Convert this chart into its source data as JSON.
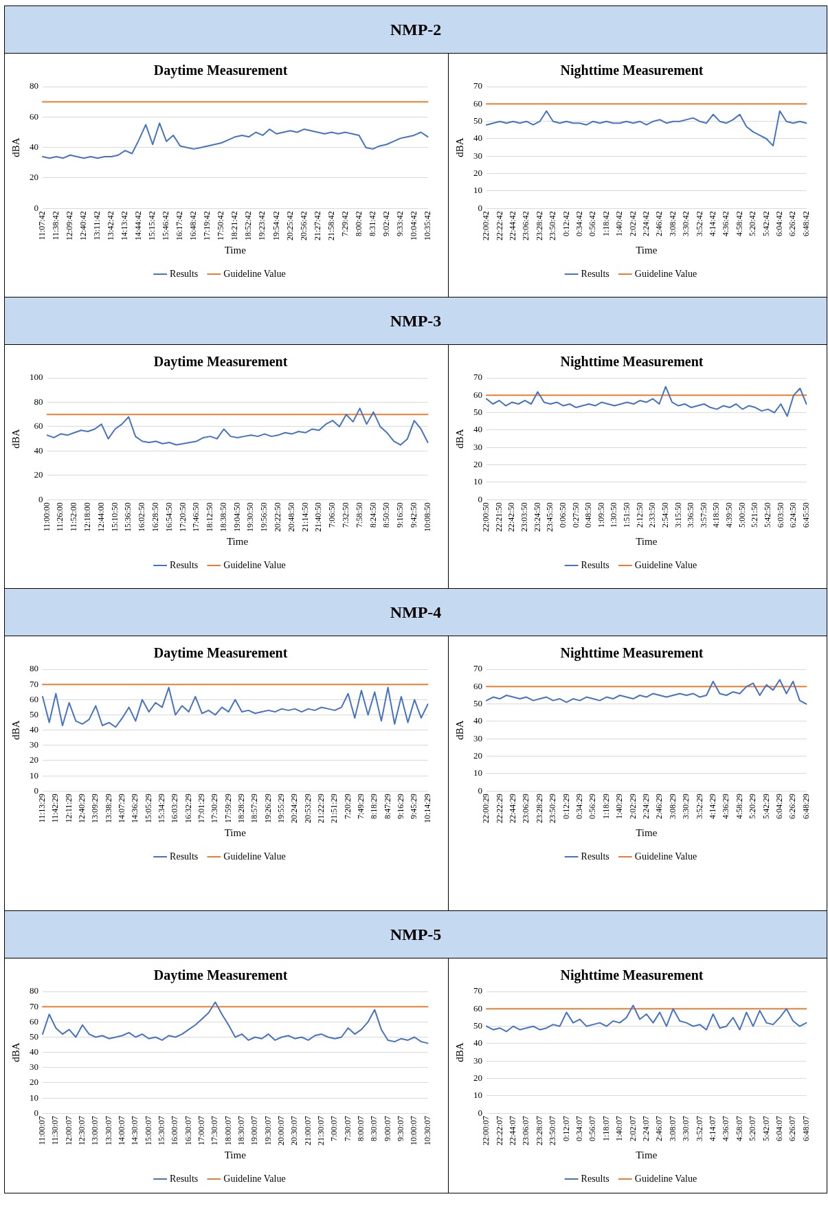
{
  "chart_data": [
    {
      "type": "line",
      "subtitle": "NMP-2",
      "title": "Daytime Measurement",
      "xlabel": "Time",
      "ylabel": "dBA",
      "grid": "y",
      "legend": "bottom",
      "marker": "none",
      "categories": [
        "11:07:42",
        null,
        "11:38:42",
        null,
        "12:09:42",
        null,
        "12:40:42",
        null,
        "13:11:42",
        null,
        "13:42:42",
        null,
        "14:13:42",
        null,
        "14:44:42",
        null,
        "15:15:42",
        null,
        "15:46:42",
        null,
        "16:17:42",
        null,
        "16:48:42",
        null,
        "17:19:42",
        null,
        "17:50:42",
        null,
        "18:21:42",
        null,
        "18:52:42",
        null,
        "19:23:42",
        null,
        "19:54:42",
        null,
        "20:25:42",
        null,
        "20:56:42",
        null,
        "21:27:42",
        null,
        "21:58:42",
        null,
        "7:29:42",
        null,
        "8:00:42",
        null,
        "8:31:42",
        null,
        "9:02:42",
        null,
        "9:33:42",
        null,
        "10:04:42",
        null,
        "10:35:42"
      ],
      "ylim": [
        0,
        80
      ],
      "yticks": [
        0,
        20,
        40,
        60,
        80
      ],
      "series": [
        {
          "name": "Results",
          "color": "#4472c4",
          "values": [
            34,
            33,
            34,
            33,
            35,
            34,
            33,
            34,
            33,
            34,
            34,
            35,
            38,
            36,
            45,
            55,
            42,
            56,
            44,
            48,
            41,
            40,
            39,
            40,
            41,
            42,
            43,
            45,
            47,
            48,
            47,
            50,
            48,
            52,
            49,
            50,
            51,
            50,
            52,
            51,
            50,
            49,
            50,
            49,
            50,
            49,
            48,
            40,
            39,
            41,
            42,
            44,
            46,
            47,
            48,
            50,
            47
          ]
        },
        {
          "name": "Guideline Value",
          "color": "#ed7d31",
          "values": [
            70,
            70,
            70,
            70,
            70,
            70,
            70,
            70,
            70,
            70,
            70,
            70,
            70,
            70,
            70,
            70,
            70,
            70,
            70,
            70,
            70,
            70,
            70,
            70,
            70,
            70,
            70,
            70,
            70,
            70,
            70,
            70,
            70,
            70,
            70,
            70,
            70,
            70,
            70,
            70,
            70,
            70,
            70,
            70,
            70,
            70,
            70,
            70,
            70,
            70,
            70,
            70,
            70,
            70,
            70,
            70,
            70
          ]
        }
      ]
    },
    {
      "type": "line",
      "title": "Nighttime Measurement",
      "xlabel": "Time",
      "ylabel": "dBA",
      "grid": "y",
      "legend": "bottom",
      "marker": "none",
      "categories": [
        "22:00:42",
        null,
        "22:22:42",
        null,
        "22:44:42",
        null,
        "23:06:42",
        null,
        "23:28:42",
        null,
        "23:50:42",
        null,
        "0:12:42",
        null,
        "0:34:42",
        null,
        "0:56:42",
        null,
        "1:18:42",
        null,
        "1:40:42",
        null,
        "2:02:42",
        null,
        "2:24:42",
        null,
        "2:46:42",
        null,
        "3:08:42",
        null,
        "3:30:42",
        null,
        "3:52:42",
        null,
        "4:14:42",
        null,
        "4:36:42",
        null,
        "4:58:42",
        null,
        "5:20:42",
        null,
        "5:42:42",
        null,
        "6:04:42",
        null,
        "6:26:42",
        null,
        "6:48:42"
      ],
      "ylim": [
        0,
        70
      ],
      "yticks": [
        0,
        10,
        20,
        30,
        40,
        50,
        60,
        70
      ],
      "series": [
        {
          "name": "Results",
          "color": "#4472c4",
          "values": [
            48,
            49,
            50,
            49,
            50,
            49,
            50,
            48,
            50,
            56,
            50,
            49,
            50,
            49,
            49,
            48,
            50,
            49,
            50,
            49,
            49,
            50,
            49,
            50,
            48,
            50,
            51,
            49,
            50,
            50,
            51,
            52,
            50,
            49,
            54,
            50,
            49,
            51,
            54,
            47,
            44,
            42,
            40,
            36,
            56,
            50,
            49,
            50,
            49
          ]
        },
        {
          "name": "Guideline Value",
          "color": "#ed7d31",
          "values": [
            60,
            60,
            60,
            60,
            60,
            60,
            60,
            60,
            60,
            60,
            60,
            60,
            60,
            60,
            60,
            60,
            60,
            60,
            60,
            60,
            60,
            60,
            60,
            60,
            60,
            60,
            60,
            60,
            60,
            60,
            60,
            60,
            60,
            60,
            60,
            60,
            60,
            60,
            60,
            60,
            60,
            60,
            60,
            60,
            60,
            60,
            60,
            60,
            60
          ]
        }
      ]
    },
    {
      "type": "line",
      "subtitle": "NMP-3",
      "title": "Daytime Measurement",
      "xlabel": "Time",
      "ylabel": "dBA",
      "grid": "y",
      "legend": "bottom",
      "marker": "none",
      "categories": [
        "11:00:00",
        null,
        "11:26:00",
        null,
        "11:52:00",
        null,
        "12:18:00",
        null,
        "12:44:00",
        null,
        "15:10:50",
        null,
        "15:36:50",
        null,
        "16:02:50",
        null,
        "16:28:50",
        null,
        "16:54:50",
        null,
        "17:20:50",
        null,
        "17:46:50",
        null,
        "18:12:50",
        null,
        "18:38:50",
        null,
        "19:04:50",
        null,
        "19:30:50",
        null,
        "19:56:50",
        null,
        "20:22:50",
        null,
        "20:48:50",
        null,
        "21:14:50",
        null,
        "21:40:50",
        null,
        "7:06:50",
        null,
        "7:32:50",
        null,
        "7:58:50",
        null,
        "8:24:50",
        null,
        "8:50:50",
        null,
        "9:16:50",
        null,
        "9:42:50",
        null,
        "10:08:50"
      ],
      "ylim": [
        0,
        100
      ],
      "yticks": [
        0,
        20,
        40,
        60,
        80,
        100
      ],
      "series": [
        {
          "name": "Results",
          "color": "#4472c4",
          "values": [
            53,
            51,
            54,
            53,
            55,
            57,
            56,
            58,
            62,
            50,
            58,
            62,
            68,
            52,
            48,
            47,
            48,
            46,
            47,
            45,
            46,
            47,
            48,
            51,
            52,
            50,
            58,
            52,
            51,
            52,
            53,
            52,
            54,
            52,
            53,
            55,
            54,
            56,
            55,
            58,
            57,
            62,
            65,
            60,
            70,
            64,
            75,
            62,
            72,
            60,
            55,
            48,
            45,
            50,
            65,
            58,
            47
          ]
        },
        {
          "name": "Guideline Value",
          "color": "#ed7d31",
          "values": [
            70,
            70,
            70,
            70,
            70,
            70,
            70,
            70,
            70,
            70,
            70,
            70,
            70,
            70,
            70,
            70,
            70,
            70,
            70,
            70,
            70,
            70,
            70,
            70,
            70,
            70,
            70,
            70,
            70,
            70,
            70,
            70,
            70,
            70,
            70,
            70,
            70,
            70,
            70,
            70,
            70,
            70,
            70,
            70,
            70,
            70,
            70,
            70,
            70,
            70,
            70,
            70,
            70,
            70,
            70,
            70,
            70
          ]
        }
      ]
    },
    {
      "type": "line",
      "title": "Nighttime Measurement",
      "xlabel": "Time",
      "ylabel": "dBA",
      "grid": "y",
      "legend": "bottom",
      "marker": "none",
      "categories": [
        "22:00:50",
        null,
        "22:21:50",
        null,
        "22:42:50",
        null,
        "23:03:50",
        null,
        "23:24:50",
        null,
        "23:45:50",
        null,
        "0:06:50",
        null,
        "0:27:50",
        null,
        "0:48:50",
        null,
        "1:09:50",
        null,
        "1:30:50",
        null,
        "1:51:50",
        null,
        "2:12:50",
        null,
        "2:33:50",
        null,
        "2:54:50",
        null,
        "3:15:50",
        null,
        "3:36:50",
        null,
        "3:57:50",
        null,
        "4:18:50",
        null,
        "4:39:50",
        null,
        "5:00:50",
        null,
        "5:21:50",
        null,
        "5:42:50",
        null,
        "6:03:50",
        null,
        "6:24:50",
        null,
        "6:45:50"
      ],
      "ylim": [
        0,
        70
      ],
      "yticks": [
        0,
        10,
        20,
        30,
        40,
        50,
        60,
        70
      ],
      "series": [
        {
          "name": "Results",
          "color": "#4472c4",
          "values": [
            58,
            55,
            57,
            54,
            56,
            55,
            57,
            55,
            62,
            56,
            55,
            56,
            54,
            55,
            53,
            54,
            55,
            54,
            56,
            55,
            54,
            55,
            56,
            55,
            57,
            56,
            58,
            55,
            65,
            56,
            54,
            55,
            53,
            54,
            55,
            53,
            52,
            54,
            53,
            55,
            52,
            54,
            53,
            51,
            52,
            50,
            55,
            48,
            60,
            64,
            55
          ]
        },
        {
          "name": "Guideline Value",
          "color": "#ed7d31",
          "values": [
            60,
            60,
            60,
            60,
            60,
            60,
            60,
            60,
            60,
            60,
            60,
            60,
            60,
            60,
            60,
            60,
            60,
            60,
            60,
            60,
            60,
            60,
            60,
            60,
            60,
            60,
            60,
            60,
            60,
            60,
            60,
            60,
            60,
            60,
            60,
            60,
            60,
            60,
            60,
            60,
            60,
            60,
            60,
            60,
            60,
            60,
            60,
            60,
            60,
            60,
            60
          ]
        }
      ]
    },
    {
      "type": "line",
      "subtitle": "NMP-4",
      "title": "Daytime Measurement",
      "xlabel": "Time",
      "ylabel": "dBA",
      "grid": "y",
      "legend": "bottom",
      "marker": "none",
      "categories": [
        "11:13:29",
        null,
        "11:42:29",
        null,
        "12:11:29",
        null,
        "12:40:29",
        null,
        "13:09:29",
        null,
        "13:38:29",
        null,
        "14:07:29",
        null,
        "14:36:29",
        null,
        "15:05:29",
        null,
        "15:34:29",
        null,
        "16:03:29",
        null,
        "16:32:29",
        null,
        "17:01:29",
        null,
        "17:30:29",
        null,
        "17:59:29",
        null,
        "18:28:29",
        null,
        "18:57:29",
        null,
        "19:26:29",
        null,
        "19:55:29",
        null,
        "20:24:29",
        null,
        "20:53:29",
        null,
        "21:22:29",
        null,
        "21:51:29",
        null,
        "7:20:29",
        null,
        "7:49:29",
        null,
        "8:18:29",
        null,
        "8:47:29",
        null,
        "9:16:29",
        null,
        "9:45:29",
        null,
        "10:14:29"
      ],
      "ylim": [
        0,
        80
      ],
      "yticks": [
        0,
        10,
        20,
        30,
        40,
        50,
        60,
        70,
        80
      ],
      "series": [
        {
          "name": "Results",
          "color": "#4472c4",
          "values": [
            62,
            45,
            64,
            43,
            58,
            46,
            44,
            47,
            56,
            43,
            45,
            42,
            48,
            55,
            46,
            60,
            52,
            58,
            55,
            68,
            50,
            56,
            52,
            62,
            51,
            53,
            50,
            55,
            52,
            60,
            52,
            53,
            51,
            52,
            53,
            52,
            54,
            53,
            54,
            52,
            54,
            53,
            55,
            54,
            53,
            55,
            64,
            48,
            66,
            50,
            65,
            46,
            68,
            44,
            62,
            45,
            60,
            48,
            57
          ]
        },
        {
          "name": "Guideline Value",
          "color": "#ed7d31",
          "values": [
            70,
            70,
            70,
            70,
            70,
            70,
            70,
            70,
            70,
            70,
            70,
            70,
            70,
            70,
            70,
            70,
            70,
            70,
            70,
            70,
            70,
            70,
            70,
            70,
            70,
            70,
            70,
            70,
            70,
            70,
            70,
            70,
            70,
            70,
            70,
            70,
            70,
            70,
            70,
            70,
            70,
            70,
            70,
            70,
            70,
            70,
            70,
            70,
            70,
            70,
            70,
            70,
            70,
            70,
            70,
            70,
            70,
            70,
            70
          ]
        }
      ]
    },
    {
      "type": "line",
      "title": "Nighttime Measurement",
      "xlabel": "Time",
      "ylabel": "dBA",
      "grid": "y",
      "legend": "bottom",
      "marker": "none",
      "categories": [
        "22:00:29",
        null,
        "22:22:29",
        null,
        "22:44:29",
        null,
        "23:06:29",
        null,
        "23:28:29",
        null,
        "23:50:29",
        null,
        "0:12:29",
        null,
        "0:34:29",
        null,
        "0:56:29",
        null,
        "1:18:29",
        null,
        "1:40:29",
        null,
        "2:02:29",
        null,
        "2:24:29",
        null,
        "2:46:29",
        null,
        "3:08:29",
        null,
        "3:30:29",
        null,
        "3:52:29",
        null,
        "4:14:29",
        null,
        "4:36:29",
        null,
        "4:58:29",
        null,
        "5:20:29",
        null,
        "5:42:29",
        null,
        "6:04:29",
        null,
        "6:26:29",
        null,
        "6:48:29"
      ],
      "ylim": [
        0,
        70
      ],
      "yticks": [
        0,
        10,
        20,
        30,
        40,
        50,
        60,
        70
      ],
      "series": [
        {
          "name": "Results",
          "color": "#4472c4",
          "values": [
            52,
            54,
            53,
            55,
            54,
            53,
            54,
            52,
            53,
            54,
            52,
            53,
            51,
            53,
            52,
            54,
            53,
            52,
            54,
            53,
            55,
            54,
            53,
            55,
            54,
            56,
            55,
            54,
            55,
            56,
            55,
            56,
            54,
            55,
            63,
            56,
            55,
            57,
            56,
            60,
            62,
            55,
            61,
            58,
            64,
            56,
            63,
            52,
            50
          ]
        },
        {
          "name": "Guideline Value",
          "color": "#ed7d31",
          "values": [
            60,
            60,
            60,
            60,
            60,
            60,
            60,
            60,
            60,
            60,
            60,
            60,
            60,
            60,
            60,
            60,
            60,
            60,
            60,
            60,
            60,
            60,
            60,
            60,
            60,
            60,
            60,
            60,
            60,
            60,
            60,
            60,
            60,
            60,
            60,
            60,
            60,
            60,
            60,
            60,
            60,
            60,
            60,
            60,
            60,
            60,
            60,
            60,
            60
          ]
        }
      ]
    },
    {
      "type": "line",
      "subtitle": "NMP-5",
      "title": "Daytime Measurement",
      "xlabel": "Time",
      "ylabel": "dBA",
      "grid": "y",
      "legend": "bottom",
      "marker": "none",
      "categories": [
        "11:00:07",
        null,
        "11:30:07",
        null,
        "12:00:07",
        null,
        "12:30:07",
        null,
        "13:00:07",
        null,
        "13:30:07",
        null,
        "14:00:07",
        null,
        "14:30:07",
        null,
        "15:00:07",
        null,
        "15:30:07",
        null,
        "16:00:07",
        null,
        "16:30:07",
        null,
        "17:00:07",
        null,
        "17:30:07",
        null,
        "18:00:07",
        null,
        "18:30:07",
        null,
        "19:00:07",
        null,
        "19:30:07",
        null,
        "20:00:07",
        null,
        "20:30:07",
        null,
        "21:00:07",
        null,
        "21:30:07",
        null,
        "7:00:07",
        null,
        "7:30:07",
        null,
        "8:00:07",
        null,
        "8:30:07",
        null,
        "9:00:07",
        null,
        "9:30:07",
        null,
        "10:00:07",
        null,
        "10:30:07"
      ],
      "ylim": [
        0,
        80
      ],
      "yticks": [
        0,
        10,
        20,
        30,
        40,
        50,
        60,
        70,
        80
      ],
      "series": [
        {
          "name": "Results",
          "color": "#4472c4",
          "values": [
            52,
            65,
            56,
            52,
            55,
            50,
            58,
            52,
            50,
            51,
            49,
            50,
            51,
            53,
            50,
            52,
            49,
            50,
            48,
            51,
            50,
            52,
            55,
            58,
            62,
            66,
            73,
            65,
            58,
            50,
            52,
            48,
            50,
            49,
            52,
            48,
            50,
            51,
            49,
            50,
            48,
            51,
            52,
            50,
            49,
            50,
            56,
            52,
            55,
            60,
            68,
            55,
            48,
            47,
            49,
            48,
            50,
            47,
            46
          ]
        },
        {
          "name": "Guideline Value",
          "color": "#ed7d31",
          "values": [
            70,
            70,
            70,
            70,
            70,
            70,
            70,
            70,
            70,
            70,
            70,
            70,
            70,
            70,
            70,
            70,
            70,
            70,
            70,
            70,
            70,
            70,
            70,
            70,
            70,
            70,
            70,
            70,
            70,
            70,
            70,
            70,
            70,
            70,
            70,
            70,
            70,
            70,
            70,
            70,
            70,
            70,
            70,
            70,
            70,
            70,
            70,
            70,
            70,
            70,
            70,
            70,
            70,
            70,
            70,
            70,
            70,
            70,
            70
          ]
        }
      ]
    },
    {
      "type": "line",
      "title": "Nighttime Measurement",
      "xlabel": "Time",
      "ylabel": "dBA",
      "grid": "y",
      "legend": "bottom",
      "marker": "none",
      "categories": [
        "22:00:07",
        null,
        "22:22:07",
        null,
        "22:44:07",
        null,
        "23:06:07",
        null,
        "23:28:07",
        null,
        "23:50:07",
        null,
        "0:12:07",
        null,
        "0:34:07",
        null,
        "0:56:07",
        null,
        "1:18:07",
        null,
        "1:40:07",
        null,
        "2:02:07",
        null,
        "2:24:07",
        null,
        "2:46:07",
        null,
        "3:08:07",
        null,
        "3:30:07",
        null,
        "3:52:07",
        null,
        "4:14:07",
        null,
        "4:36:07",
        null,
        "4:58:07",
        null,
        "5:20:07",
        null,
        "5:42:07",
        null,
        "6:04:07",
        null,
        "6:26:07",
        null,
        "6:48:07"
      ],
      "ylim": [
        0,
        70
      ],
      "yticks": [
        0,
        10,
        20,
        30,
        40,
        50,
        60,
        70
      ],
      "series": [
        {
          "name": "Results",
          "color": "#4472c4",
          "values": [
            50,
            48,
            49,
            47,
            50,
            48,
            49,
            50,
            48,
            49,
            51,
            50,
            58,
            52,
            54,
            50,
            51,
            52,
            50,
            53,
            52,
            55,
            62,
            54,
            57,
            52,
            58,
            50,
            60,
            53,
            52,
            50,
            51,
            48,
            57,
            49,
            50,
            55,
            48,
            58,
            50,
            59,
            52,
            51,
            55,
            60,
            53,
            50,
            52
          ]
        },
        {
          "name": "Guideline Value",
          "color": "#ed7d31",
          "values": [
            60,
            60,
            60,
            60,
            60,
            60,
            60,
            60,
            60,
            60,
            60,
            60,
            60,
            60,
            60,
            60,
            60,
            60,
            60,
            60,
            60,
            60,
            60,
            60,
            60,
            60,
            60,
            60,
            60,
            60,
            60,
            60,
            60,
            60,
            60,
            60,
            60,
            60,
            60,
            60,
            60,
            60,
            60,
            60,
            60,
            60,
            60,
            60,
            60
          ]
        }
      ]
    }
  ]
}
